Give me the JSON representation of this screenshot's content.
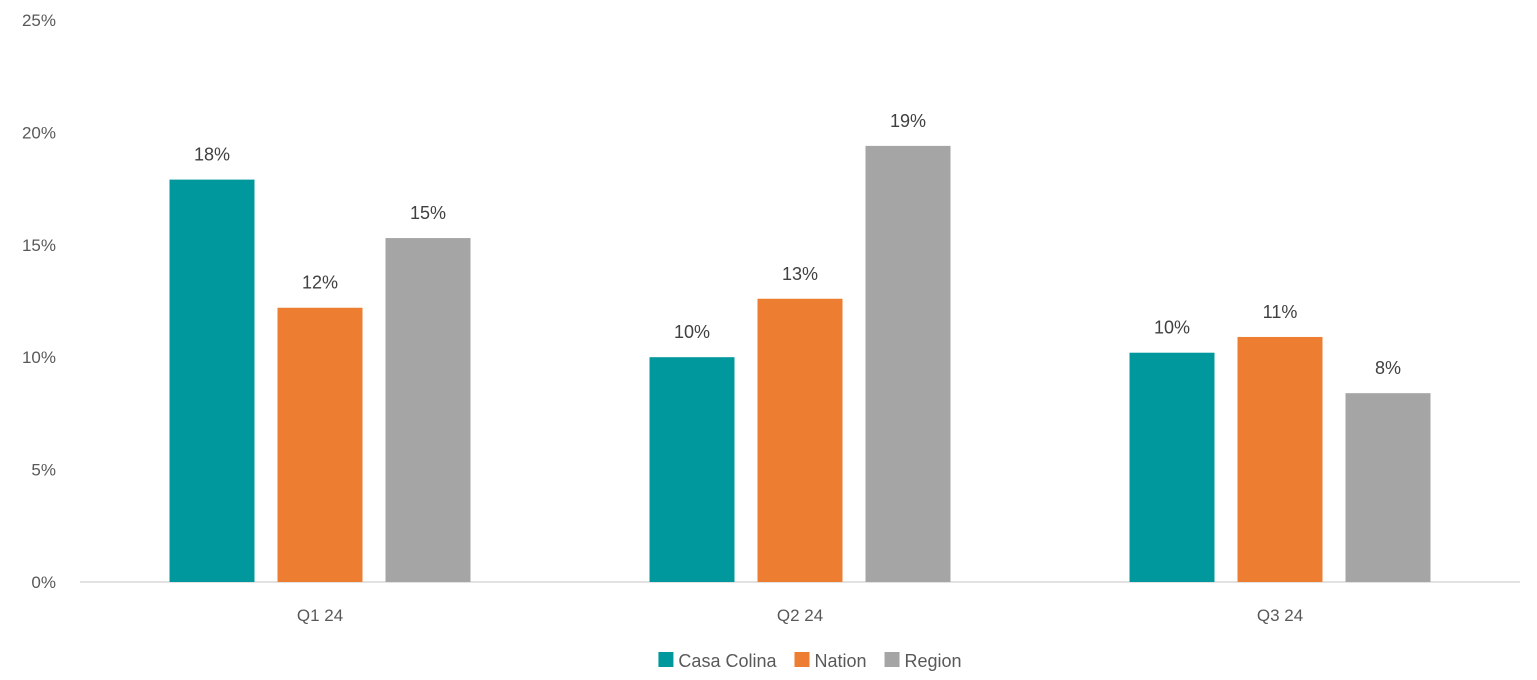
{
  "chart_data": {
    "type": "bar",
    "categories": [
      "Q1 24",
      "Q2 24",
      "Q3 24"
    ],
    "series": [
      {
        "name": "Casa Colina",
        "color": "#00979D",
        "values": [
          0.179,
          0.1,
          0.102
        ],
        "labels": [
          "18%",
          "10%",
          "10%"
        ]
      },
      {
        "name": "Nation",
        "color": "#ED7D31",
        "values": [
          0.122,
          0.126,
          0.109
        ],
        "labels": [
          "12%",
          "13%",
          "11%"
        ]
      },
      {
        "name": "Region",
        "color": "#A5A5A5",
        "values": [
          0.153,
          0.194,
          0.084
        ],
        "labels": [
          "15%",
          "19%",
          "8%"
        ]
      }
    ],
    "ylim": [
      0,
      0.25
    ],
    "yticks": [
      {
        "value": 0.25,
        "label": "25%"
      },
      {
        "value": 0.2,
        "label": "20%"
      },
      {
        "value": 0.15,
        "label": "15%"
      },
      {
        "value": 0.1,
        "label": "10%"
      },
      {
        "value": 0.05,
        "label": "5%"
      },
      {
        "value": 0.0,
        "label": "0%"
      }
    ],
    "grid": false,
    "legend_position": "bottom",
    "title": "",
    "xlabel": "",
    "ylabel": ""
  }
}
